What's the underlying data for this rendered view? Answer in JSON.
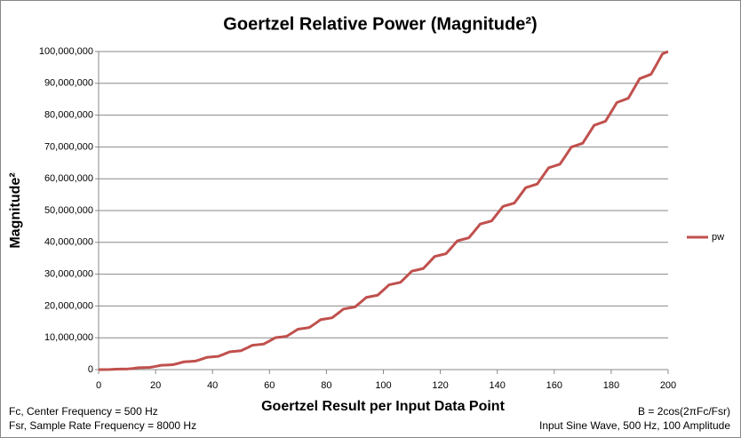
{
  "chart_data": {
    "type": "line",
    "title": "Goertzel Relative Power (Magnitude²)",
    "x_label": "Goertzel Result per Input Data Point",
    "y_label": "Magnitude²",
    "annotations": [
      "Fc, Center Frequency = 500 Hz",
      "Fsr, Sample Rate Frequency = 8000  Hz",
      "B = 2cos(2πFc/Fsr)",
      "Input Sine Wave, 500 Hz, 100  Amplitude"
    ],
    "legend": "right",
    "grid": true,
    "x": [
      0,
      2,
      4,
      6,
      8,
      10,
      12,
      14,
      16,
      18,
      20,
      22,
      24,
      26,
      28,
      30,
      32,
      34,
      36,
      38,
      40,
      42,
      44,
      46,
      48,
      50,
      52,
      54,
      56,
      58,
      60,
      62,
      64,
      66,
      68,
      70,
      72,
      74,
      76,
      78,
      80,
      82,
      84,
      86,
      88,
      90,
      92,
      94,
      96,
      98,
      100,
      102,
      104,
      106,
      108,
      110,
      112,
      114,
      116,
      118,
      120,
      122,
      124,
      126,
      128,
      130,
      132,
      134,
      136,
      138,
      140,
      142,
      144,
      146,
      148,
      150,
      152,
      154,
      156,
      158,
      160,
      162,
      164,
      166,
      168,
      170,
      172,
      174,
      176,
      178,
      180,
      182,
      184,
      186,
      188,
      190,
      192,
      194,
      196,
      198,
      200
    ],
    "series": [
      {
        "name": "pw",
        "color": "#c0504d",
        "values": [
          0,
          1321,
          40000,
          132243,
          160000,
          190400,
          360000,
          583170,
          640000,
          699480,
          1000000,
          1354080,
          1440000,
          1528580,
          1960000,
          2445000,
          2560000,
          2677650,
          3240000,
          3855930,
          4000000,
          4146720,
          4840000,
          5586850,
          5760000,
          5935800,
          6760000,
          7637780,
          7840000,
          8044870,
          9000000,
          10008680,
          10240000,
          10473980,
          11560000,
          12699600,
          12960000,
          13223050,
          14440000,
          15710520,
          16000000,
          16292130,
          17640000,
          19041450,
          19360000,
          19681200,
          21160000,
          22692380,
          23040000,
          23390280,
          25000000,
          26663280,
          27040000,
          27419340,
          29160000,
          30954200,
          31360000,
          31768440,
          33640000,
          35565120,
          36000000,
          36437520,
          38440000,
          40496050,
          40960000,
          41426600,
          43560000,
          45746970,
          46240000,
          46735670,
          49000000,
          51317880,
          51840000,
          52364760,
          54760000,
          57208790,
          57760000,
          58313840,
          60840000,
          63419720,
          64000000,
          64582920,
          67240000,
          69950650,
          70560000,
          71172010,
          73960000,
          76801550,
          77440000,
          78081080,
          81000000,
          83972490,
          84640000,
          85310150,
          88360000,
          91463400,
          92160000,
          92859260,
          96040000,
          99274320,
          100000000
        ]
      }
    ],
    "xlim": [
      0,
      200
    ],
    "xticks": [
      0,
      20,
      40,
      60,
      80,
      100,
      120,
      140,
      160,
      180,
      200
    ],
    "ylim": [
      0,
      100000000
    ],
    "yticks": [
      {
        "value": 0,
        "label": "0"
      },
      {
        "value": 10000000,
        "label": "10,000,000"
      },
      {
        "value": 20000000,
        "label": "20,000,000"
      },
      {
        "value": 30000000,
        "label": "30,000,000"
      },
      {
        "value": 40000000,
        "label": "40,000,000"
      },
      {
        "value": 50000000,
        "label": "50,000,000"
      },
      {
        "value": 60000000,
        "label": "60,000,000"
      },
      {
        "value": 70000000,
        "label": "70,000,000"
      },
      {
        "value": 80000000,
        "label": "80,000,000"
      },
      {
        "value": 90000000,
        "label": "90,000,000"
      },
      {
        "value": 100000000,
        "label": "100,000,000"
      }
    ]
  }
}
